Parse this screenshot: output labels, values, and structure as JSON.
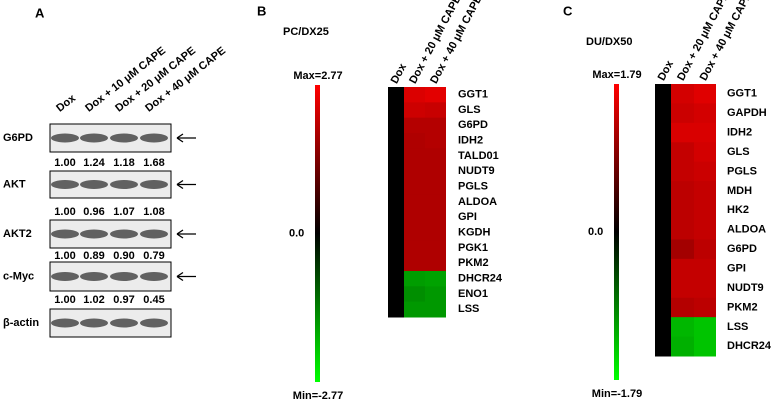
{
  "panels": [
    {
      "label": "A",
      "lanes": [
        "Dox",
        "Dox + 10 μM CAPE",
        "Dox + 20 μM CAPE",
        "Dox + 40 μM CAPE"
      ],
      "rows": [
        {
          "name": "G6PD",
          "values": [
            "1.00",
            "1.24",
            "1.18",
            "1.68"
          ]
        },
        {
          "name": "AKT",
          "values": [
            "1.00",
            "0.96",
            "1.07",
            "1.08"
          ]
        },
        {
          "name": "AKT2",
          "values": [
            "1.00",
            "0.89",
            "0.90",
            "0.79"
          ]
        },
        {
          "name": "c-Myc",
          "values": [
            "1.00",
            "1.02",
            "0.97",
            "0.45"
          ]
        },
        {
          "name": "β-actin",
          "values": []
        }
      ]
    },
    {
      "label": "B",
      "title": "PC/DX25",
      "max_label": "Max=2.77",
      "mid_label": "0.0",
      "min_label": "Min=-2.77",
      "range": [
        -2.77,
        2.77
      ],
      "columns": [
        "Dox",
        "Dox + 20 μM CAPE",
        "Dox + 40 μM CAPE"
      ],
      "rows": [
        {
          "name": "GGT1",
          "values": [
            0,
            2.5,
            2.7
          ]
        },
        {
          "name": "GLS",
          "values": [
            0,
            2.2,
            2.1
          ]
        },
        {
          "name": "G6PD",
          "values": [
            0,
            1.7,
            1.7
          ]
        },
        {
          "name": "IDH2",
          "values": [
            0,
            1.6,
            1.7
          ]
        },
        {
          "name": "TALD01",
          "values": [
            0,
            1.6,
            1.6
          ]
        },
        {
          "name": "NUDT9",
          "values": [
            0,
            1.6,
            1.6
          ]
        },
        {
          "name": "PGLS",
          "values": [
            0,
            1.6,
            1.6
          ]
        },
        {
          "name": "ALDOA",
          "values": [
            0,
            1.6,
            1.6
          ]
        },
        {
          "name": "GPI",
          "values": [
            0,
            1.6,
            1.6
          ]
        },
        {
          "name": "KGDH",
          "values": [
            0,
            1.6,
            1.6
          ]
        },
        {
          "name": "PGK1",
          "values": [
            0,
            1.6,
            1.6
          ]
        },
        {
          "name": "PKM2",
          "values": [
            0,
            1.6,
            1.6
          ]
        },
        {
          "name": "DHCR24",
          "values": [
            0,
            -1.6,
            -1.7
          ]
        },
        {
          "name": "ENO1",
          "values": [
            0,
            -1.3,
            -1.5
          ]
        },
        {
          "name": "LSS",
          "values": [
            0,
            -1.5,
            -1.5
          ]
        }
      ]
    },
    {
      "label": "C",
      "title": "DU/DX50",
      "max_label": "Max=1.79",
      "mid_label": "0.0",
      "min_label": "Min=-1.79",
      "range": [
        -1.79,
        1.79
      ],
      "columns": [
        "Dox",
        "Dox + 20 μM CAPE",
        "Dox + 40 μM CAPE"
      ],
      "rows": [
        {
          "name": "GGT1",
          "values": [
            0,
            1.5,
            1.7
          ]
        },
        {
          "name": "GAPDH",
          "values": [
            0,
            1.4,
            1.5
          ]
        },
        {
          "name": "IDH2",
          "values": [
            0,
            1.6,
            1.6
          ]
        },
        {
          "name": "GLS",
          "values": [
            0,
            1.3,
            1.5
          ]
        },
        {
          "name": "PGLS",
          "values": [
            0,
            1.3,
            1.4
          ]
        },
        {
          "name": "MDH",
          "values": [
            0,
            1.2,
            1.3
          ]
        },
        {
          "name": "HK2",
          "values": [
            0,
            1.2,
            1.3
          ]
        },
        {
          "name": "ALDOA",
          "values": [
            0,
            1.2,
            1.3
          ]
        },
        {
          "name": "G6PD",
          "values": [
            0,
            0.9,
            1.2
          ]
        },
        {
          "name": "GPI",
          "values": [
            0,
            1.3,
            1.3
          ]
        },
        {
          "name": "NUDT9",
          "values": [
            0,
            1.3,
            1.3
          ]
        },
        {
          "name": "PKM2",
          "values": [
            0,
            1.1,
            1.2
          ]
        },
        {
          "name": "LSS",
          "values": [
            0,
            -1.4,
            -1.6
          ]
        },
        {
          "name": "DHCR24",
          "values": [
            0,
            -1.3,
            -1.6
          ]
        }
      ]
    }
  ]
}
